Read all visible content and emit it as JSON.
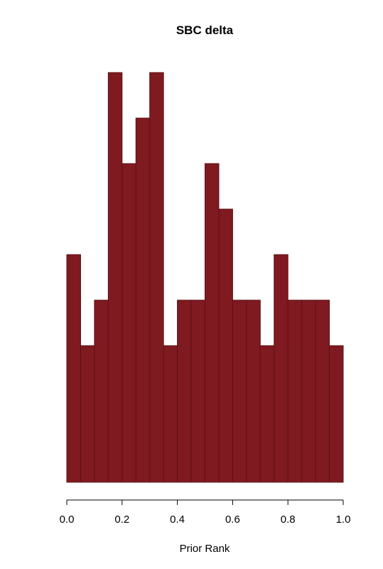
{
  "chart_data": {
    "type": "bar",
    "title": "SBC delta",
    "xlabel": "Prior Rank",
    "ylabel": "",
    "xlim": [
      0.0,
      1.0
    ],
    "ylim": [
      0,
      9
    ],
    "bin_edges": [
      0.0,
      0.05,
      0.1,
      0.15,
      0.2,
      0.25,
      0.3,
      0.35,
      0.4,
      0.45,
      0.5,
      0.55,
      0.6,
      0.65,
      0.7,
      0.75,
      0.8,
      0.85,
      0.9,
      0.95,
      1.0
    ],
    "values": [
      5,
      3,
      4,
      9,
      7,
      8,
      9,
      3,
      4,
      4,
      7,
      6,
      4,
      4,
      3,
      5,
      4,
      4,
      4,
      3
    ],
    "x_ticks": [
      0.0,
      0.2,
      0.4,
      0.6,
      0.8,
      1.0
    ],
    "x_tick_labels": [
      "0.0",
      "0.2",
      "0.4",
      "0.6",
      "0.8",
      "1.0"
    ],
    "y_axis_shown": false,
    "grid": false,
    "bar_color": "#7f1a20",
    "bar_edge_color": "#5e1015"
  }
}
